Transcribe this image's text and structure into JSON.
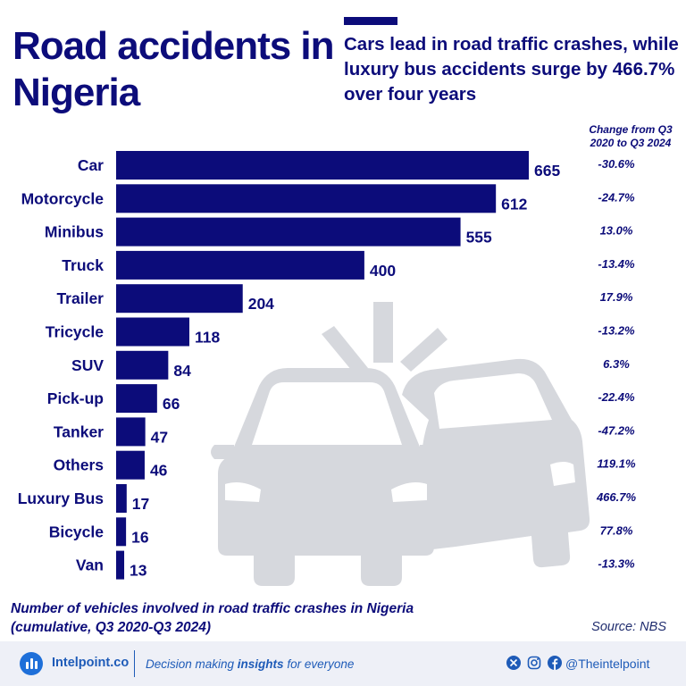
{
  "header": {
    "title": "Road accidents in Nigeria",
    "subtitle": "Cars lead in road traffic crashes, while luxury bus accidents surge by 466.7% over four years"
  },
  "chart_data": {
    "type": "bar",
    "orientation": "horizontal",
    "categories": [
      "Car",
      "Motorcycle",
      "Minibus",
      "Truck",
      "Trailer",
      "Tricycle",
      "SUV",
      "Pick-up",
      "Tanker",
      "Others",
      "Luxury Bus",
      "Bicycle",
      "Van"
    ],
    "values": [
      665,
      612,
      555,
      400,
      204,
      118,
      84,
      66,
      47,
      46,
      17,
      16,
      13
    ],
    "changes": [
      "-30.6%",
      "-24.7%",
      "13.0%",
      "-13.4%",
      "17.9%",
      "-13.2%",
      "6.3%",
      "-22.4%",
      "-47.2%",
      "119.1%",
      "466.7%",
      "77.8%",
      "-13.3%"
    ],
    "change_header": [
      "Change from Q3",
      "2020 to Q3 2024"
    ],
    "xlim": [
      0,
      665
    ],
    "grid": false,
    "bar_color": "#0c0c7a"
  },
  "footnote": {
    "line1": "Number of vehicles involved in road traffic crashes in Nigeria",
    "line2": "(cumulative, Q3 2020-Q3 2024)"
  },
  "source": "Source: NBS",
  "footer": {
    "brand": "Intelpoint.co",
    "tagline_pre": "Decision making ",
    "tagline_bold": "insights",
    "tagline_post": " for everyone",
    "handle": "@Theintelpoint",
    "icons": [
      "x-icon",
      "instagram-icon",
      "facebook-icon"
    ]
  },
  "colors": {
    "primary": "#0c0c7a",
    "illustration": "#d6d8dd",
    "footer_bg": "#eef0f7",
    "footer_text": "#1e5bb8"
  }
}
